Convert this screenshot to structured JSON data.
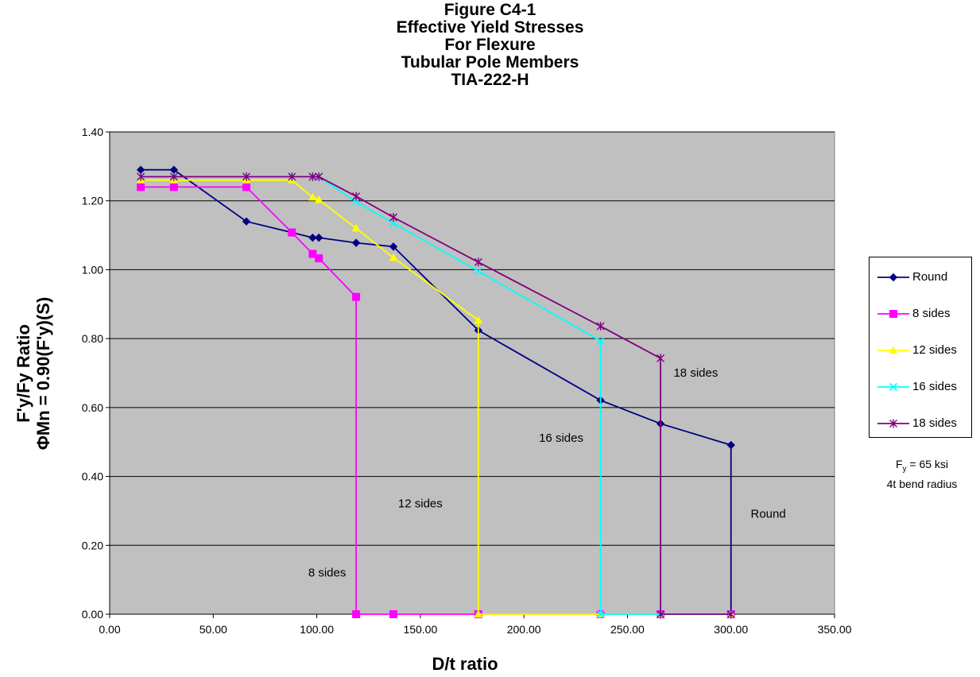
{
  "chart_data": {
    "type": "line",
    "title_lines": [
      "Figure C4-1",
      "Effective Yield Stresses",
      "For Flexure",
      "Tubular Pole Members",
      "TIA-222-H"
    ],
    "xlabel": "D/t ratio",
    "ylabel_line1": "F'y/Fy Ratio",
    "ylabel_line2": "ΦMn = 0.90(F'y)(S)",
    "xlim": [
      0,
      350
    ],
    "ylim": [
      0,
      1.4
    ],
    "x_ticks": [
      "0.00",
      "50.00",
      "100.00",
      "150.00",
      "200.00",
      "250.00",
      "300.00",
      "350.00"
    ],
    "y_ticks": [
      "0.00",
      "0.20",
      "0.40",
      "0.60",
      "0.80",
      "1.00",
      "1.20",
      "1.40"
    ],
    "grid": "horizontal",
    "legend_position": "right",
    "series": [
      {
        "name": "Round",
        "color": "#000080",
        "marker": "diamond",
        "points": [
          [
            15,
            1.29
          ],
          [
            31,
            1.29
          ],
          [
            66,
            1.14
          ],
          [
            88,
            1.108
          ],
          [
            98,
            1.093
          ],
          [
            101,
            1.093
          ],
          [
            119,
            1.078
          ],
          [
            137,
            1.067
          ],
          [
            178,
            0.824
          ],
          [
            237,
            0.621
          ],
          [
            266,
            0.553
          ],
          [
            300,
            0.491
          ],
          [
            300,
            0.0
          ]
        ]
      },
      {
        "name": "8 sides",
        "color": "#ff00ff",
        "marker": "square",
        "points": [
          [
            15,
            1.24
          ],
          [
            31,
            1.24
          ],
          [
            66,
            1.24
          ],
          [
            88,
            1.108
          ],
          [
            98,
            1.046
          ],
          [
            101,
            1.033
          ],
          [
            119,
            0.921
          ],
          [
            119,
            0.0
          ],
          [
            137,
            0.0
          ],
          [
            178,
            0.0
          ],
          [
            237,
            0.0
          ],
          [
            266,
            0.0
          ],
          [
            300,
            0.0
          ]
        ]
      },
      {
        "name": "12 sides",
        "color": "#ffff00",
        "marker": "triangle",
        "points": [
          [
            15,
            1.26
          ],
          [
            31,
            1.26
          ],
          [
            66,
            1.26
          ],
          [
            88,
            1.26
          ],
          [
            98,
            1.21
          ],
          [
            101,
            1.203
          ],
          [
            119,
            1.12
          ],
          [
            137,
            1.035
          ],
          [
            178,
            0.853
          ],
          [
            178,
            0.0
          ],
          [
            237,
            0.0
          ],
          [
            266,
            0.0
          ],
          [
            300,
            0.0
          ]
        ]
      },
      {
        "name": "16 sides",
        "color": "#00ffff",
        "marker": "x",
        "points": [
          [
            15,
            1.27
          ],
          [
            31,
            1.27
          ],
          [
            66,
            1.27
          ],
          [
            88,
            1.27
          ],
          [
            98,
            1.27
          ],
          [
            101,
            1.27
          ],
          [
            119,
            1.197
          ],
          [
            137,
            1.135
          ],
          [
            178,
            0.996
          ],
          [
            237,
            0.793
          ],
          [
            237,
            0.0
          ],
          [
            266,
            0.0
          ],
          [
            300,
            0.0
          ]
        ]
      },
      {
        "name": "18 sides",
        "color": "#800080",
        "marker": "star",
        "points": [
          [
            15,
            1.27
          ],
          [
            31,
            1.27
          ],
          [
            66,
            1.27
          ],
          [
            88,
            1.27
          ],
          [
            98,
            1.27
          ],
          [
            101,
            1.27
          ],
          [
            119,
            1.213
          ],
          [
            137,
            1.152
          ],
          [
            178,
            1.022
          ],
          [
            237,
            0.836
          ],
          [
            266,
            0.743
          ],
          [
            266,
            0.0
          ],
          [
            300,
            0.0
          ]
        ]
      }
    ],
    "annotations": [
      {
        "text": "8 sides",
        "x": 105,
        "y": 0.11
      },
      {
        "text": "12 sides",
        "x": 150,
        "y": 0.31
      },
      {
        "text": "16 sides",
        "x": 218,
        "y": 0.5
      },
      {
        "text": "18 sides",
        "x": 283,
        "y": 0.69
      },
      {
        "text": "Round",
        "x": 318,
        "y": 0.28
      }
    ],
    "note_line1_main": "F",
    "note_line1_sub": "y",
    "note_line1_rest": " = 65 ksi",
    "note_line2": "4t bend radius"
  }
}
